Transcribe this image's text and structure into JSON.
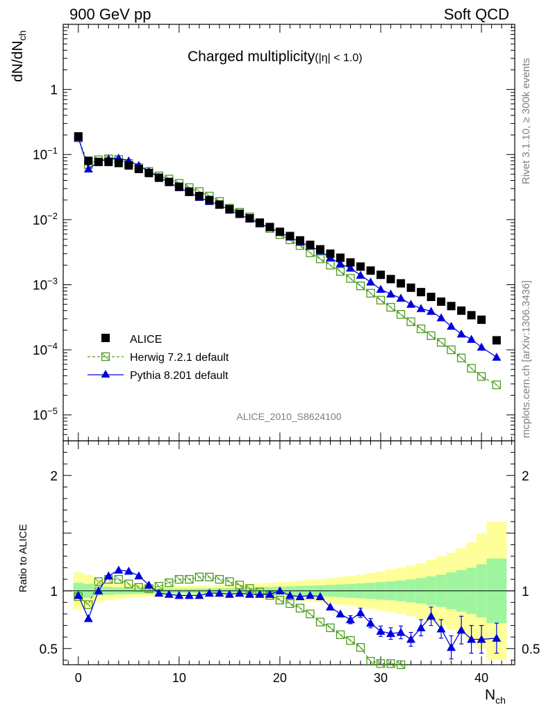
{
  "header": {
    "left": "900 GeV pp",
    "right": "Soft QCD"
  },
  "side": {
    "rivet": "Rivet 3.1.10, ≥ 300k events",
    "mcplots": "mcplots.cern.ch [arXiv:1306.3436]"
  },
  "chart_data": [
    {
      "type": "scatter",
      "title": "Charged multiplicity",
      "title_suffix": "(|η| < 1.0)",
      "ylabel": "dN/dN",
      "ylabel_sub": "ch",
      "yscale": "log",
      "ylim": [
        4e-06,
        10
      ],
      "xlim": [
        -1.5,
        43.3
      ],
      "xlabel": "N",
      "xlabel_sub": "ch",
      "analysis_tag": "ALICE_2010_S8624100",
      "y_ticks": [
        {
          "value": 1,
          "label": "1"
        },
        {
          "value": 0.1,
          "base": "10",
          "exp": "−1"
        },
        {
          "value": 0.01,
          "base": "10",
          "exp": "−2"
        },
        {
          "value": 0.001,
          "base": "10",
          "exp": "−3"
        },
        {
          "value": 0.0001,
          "base": "10",
          "exp": "−4"
        },
        {
          "value": 1e-05,
          "base": "10",
          "exp": "−5"
        }
      ],
      "legend_position": "lower-left",
      "series": [
        {
          "name": "ALICE",
          "color": "#000000",
          "marker": "filled-square",
          "x": [
            0,
            1,
            2,
            3,
            4,
            5,
            6,
            7,
            8,
            9,
            10,
            11,
            12,
            13,
            14,
            15,
            16,
            17,
            18,
            19,
            20,
            21,
            22,
            23,
            24,
            25,
            26,
            27,
            28,
            29,
            30,
            31,
            32,
            33,
            34,
            35,
            36,
            37,
            38,
            39,
            40,
            41.5
          ],
          "values": [
            0.19,
            0.08,
            0.077,
            0.077,
            0.074,
            0.068,
            0.06,
            0.052,
            0.044,
            0.038,
            0.032,
            0.027,
            0.023,
            0.02,
            0.017,
            0.0145,
            0.0123,
            0.0105,
            0.009,
            0.0077,
            0.0065,
            0.0056,
            0.0048,
            0.0041,
            0.0035,
            0.003,
            0.0026,
            0.0022,
            0.0019,
            0.00165,
            0.00142,
            0.00122,
            0.00105,
            0.0009,
            0.00077,
            0.00065,
            0.00055,
            0.00047,
            0.0004,
            0.00034,
            0.00029,
            0.00014
          ]
        },
        {
          "name": "Herwig 7.2.1 default",
          "color": "#4a9a1e",
          "marker": "open-square",
          "line": "dashed",
          "x": [
            0,
            1,
            2,
            3,
            4,
            5,
            6,
            7,
            8,
            9,
            10,
            11,
            12,
            13,
            14,
            15,
            16,
            17,
            18,
            19,
            20,
            21,
            22,
            23,
            24,
            25,
            26,
            27,
            28,
            29,
            30,
            31,
            32,
            33,
            34,
            35,
            36,
            37,
            38,
            39,
            40,
            41.5
          ],
          "values": [
            0.18,
            0.07,
            0.083,
            0.086,
            0.084,
            0.073,
            0.063,
            0.055,
            0.047,
            0.042,
            0.036,
            0.031,
            0.027,
            0.023,
            0.019,
            0.015,
            0.013,
            0.011,
            0.0088,
            0.0073,
            0.0059,
            0.0049,
            0.004,
            0.0031,
            0.0025,
            0.002,
            0.0016,
            0.00125,
            0.00096,
            0.00074,
            0.00058,
            0.00045,
            0.00035,
            0.00027,
            0.00021,
            0.000165,
            0.00013,
            0.0001,
            7.5e-05,
            5.2e-05,
            3.9e-05,
            2.9e-05
          ]
        },
        {
          "name": "Pythia 8.201 default",
          "color": "#0000dd",
          "marker": "filled-triangle",
          "line": "solid",
          "x": [
            0,
            1,
            2,
            3,
            4,
            5,
            6,
            7,
            8,
            9,
            10,
            11,
            12,
            13,
            14,
            15,
            16,
            17,
            18,
            19,
            20,
            21,
            22,
            23,
            24,
            25,
            26,
            27,
            28,
            29,
            30,
            31,
            32,
            33,
            34,
            35,
            36,
            37,
            38,
            39,
            40,
            41.5
          ],
          "values": [
            0.18,
            0.06,
            0.077,
            0.086,
            0.088,
            0.08,
            0.068,
            0.055,
            0.045,
            0.037,
            0.031,
            0.026,
            0.022,
            0.019,
            0.017,
            0.014,
            0.012,
            0.0102,
            0.0087,
            0.0075,
            0.0064,
            0.0054,
            0.0045,
            0.0039,
            0.0033,
            0.0026,
            0.0021,
            0.0018,
            0.0014,
            0.0011,
            0.00085,
            0.00072,
            0.00062,
            0.0005,
            0.00043,
            0.00039,
            0.00031,
            0.00023,
            0.000175,
            0.000145,
            0.00011,
            7.7e-05
          ]
        }
      ]
    },
    {
      "type": "scatter",
      "ylabel": "Ratio to ALICE",
      "ylim": [
        0.36,
        2.3
      ],
      "xlim": [
        -1.5,
        43.3
      ],
      "y_ticks": [
        {
          "value": 0.5,
          "label": "0.5"
        },
        {
          "value": 1,
          "label": "1"
        },
        {
          "value": 2,
          "label": "2"
        }
      ],
      "x_ticks": [
        {
          "value": 0,
          "label": "0"
        },
        {
          "value": 10,
          "label": "10"
        },
        {
          "value": 20,
          "label": "20"
        },
        {
          "value": 30,
          "label": "30"
        },
        {
          "value": 40,
          "label": "40"
        }
      ],
      "bands": {
        "x_edges": [
          -0.5,
          0.5,
          1.5,
          2.5,
          3.5,
          4.5,
          5.5,
          6.5,
          7.5,
          8.5,
          9.5,
          10.5,
          11.5,
          12.5,
          13.5,
          14.5,
          15.5,
          16.5,
          17.5,
          18.5,
          19.5,
          20.5,
          21.5,
          22.5,
          23.5,
          24.5,
          25.5,
          26.5,
          27.5,
          28.5,
          29.5,
          30.5,
          31.5,
          32.5,
          33.5,
          34.5,
          35.5,
          36.5,
          37.5,
          38.5,
          39.5,
          40.5,
          42.5
        ],
        "stat_half_width": [
          0.07,
          0.06,
          0.04,
          0.035,
          0.03,
          0.028,
          0.026,
          0.024,
          0.022,
          0.021,
          0.02,
          0.02,
          0.021,
          0.022,
          0.023,
          0.025,
          0.027,
          0.029,
          0.031,
          0.033,
          0.036,
          0.039,
          0.042,
          0.045,
          0.048,
          0.052,
          0.056,
          0.06,
          0.065,
          0.07,
          0.076,
          0.082,
          0.09,
          0.1,
          0.11,
          0.125,
          0.14,
          0.16,
          0.18,
          0.2,
          0.23,
          0.28
        ],
        "total_half_width": [
          0.16,
          0.14,
          0.1,
          0.08,
          0.07,
          0.06,
          0.055,
          0.05,
          0.048,
          0.047,
          0.046,
          0.046,
          0.047,
          0.049,
          0.052,
          0.055,
          0.058,
          0.062,
          0.066,
          0.07,
          0.076,
          0.082,
          0.088,
          0.094,
          0.1,
          0.11,
          0.12,
          0.13,
          0.14,
          0.155,
          0.17,
          0.185,
          0.2,
          0.22,
          0.24,
          0.27,
          0.3,
          0.33,
          0.37,
          0.42,
          0.5,
          0.6
        ],
        "stat_color": "#9ff59f",
        "total_color": "#ffff99"
      },
      "series": [
        {
          "name": "Herwig 7.2.1 default",
          "color": "#4a9a1e",
          "marker": "open-square",
          "line": "dashed",
          "x": [
            0,
            1,
            2,
            3,
            4,
            5,
            6,
            7,
            8,
            9,
            10,
            11,
            12,
            13,
            14,
            15,
            16,
            17,
            18,
            19,
            20,
            21,
            22,
            23,
            24,
            25,
            26,
            27,
            28,
            29,
            30,
            31,
            32
          ],
          "values": [
            0.95,
            0.88,
            1.08,
            1.1,
            1.1,
            1.06,
            1.03,
            1.02,
            1.04,
            1.07,
            1.1,
            1.1,
            1.12,
            1.12,
            1.1,
            1.08,
            1.05,
            1.02,
            0.99,
            0.96,
            0.92,
            0.89,
            0.85,
            0.8,
            0.73,
            0.68,
            0.62,
            0.57,
            0.51,
            0.39,
            0.37,
            0.37,
            0.36
          ]
        },
        {
          "name": "Pythia 8.201 default",
          "color": "#0000dd",
          "marker": "filled-triangle",
          "line": "solid",
          "x": [
            0,
            1,
            2,
            3,
            4,
            5,
            6,
            7,
            8,
            9,
            10,
            11,
            12,
            13,
            14,
            15,
            16,
            17,
            18,
            19,
            20,
            21,
            22,
            23,
            24,
            25,
            26,
            27,
            28,
            29,
            30,
            31,
            32,
            33,
            34,
            35,
            36,
            37,
            38,
            39,
            40,
            41.5
          ],
          "values": [
            0.96,
            0.76,
            1.0,
            1.13,
            1.18,
            1.17,
            1.13,
            1.05,
            0.98,
            0.97,
            0.96,
            0.96,
            0.96,
            0.98,
            0.98,
            0.97,
            0.98,
            0.97,
            0.97,
            0.97,
            1.0,
            0.96,
            0.95,
            0.96,
            0.95,
            0.86,
            0.8,
            0.75,
            0.81,
            0.72,
            0.65,
            0.63,
            0.64,
            0.58,
            0.68,
            0.78,
            0.67,
            0.51,
            0.66,
            0.58,
            0.58,
            0.59
          ],
          "errors": [
            0.02,
            0.02,
            0.015,
            0.015,
            0.015,
            0.015,
            0.015,
            0.015,
            0.015,
            0.015,
            0.015,
            0.015,
            0.015,
            0.015,
            0.015,
            0.015,
            0.015,
            0.015,
            0.015,
            0.015,
            0.015,
            0.015,
            0.02,
            0.02,
            0.025,
            0.03,
            0.03,
            0.035,
            0.04,
            0.04,
            0.045,
            0.05,
            0.055,
            0.06,
            0.07,
            0.08,
            0.08,
            0.1,
            0.12,
            0.12,
            0.12,
            0.13
          ]
        }
      ]
    }
  ]
}
